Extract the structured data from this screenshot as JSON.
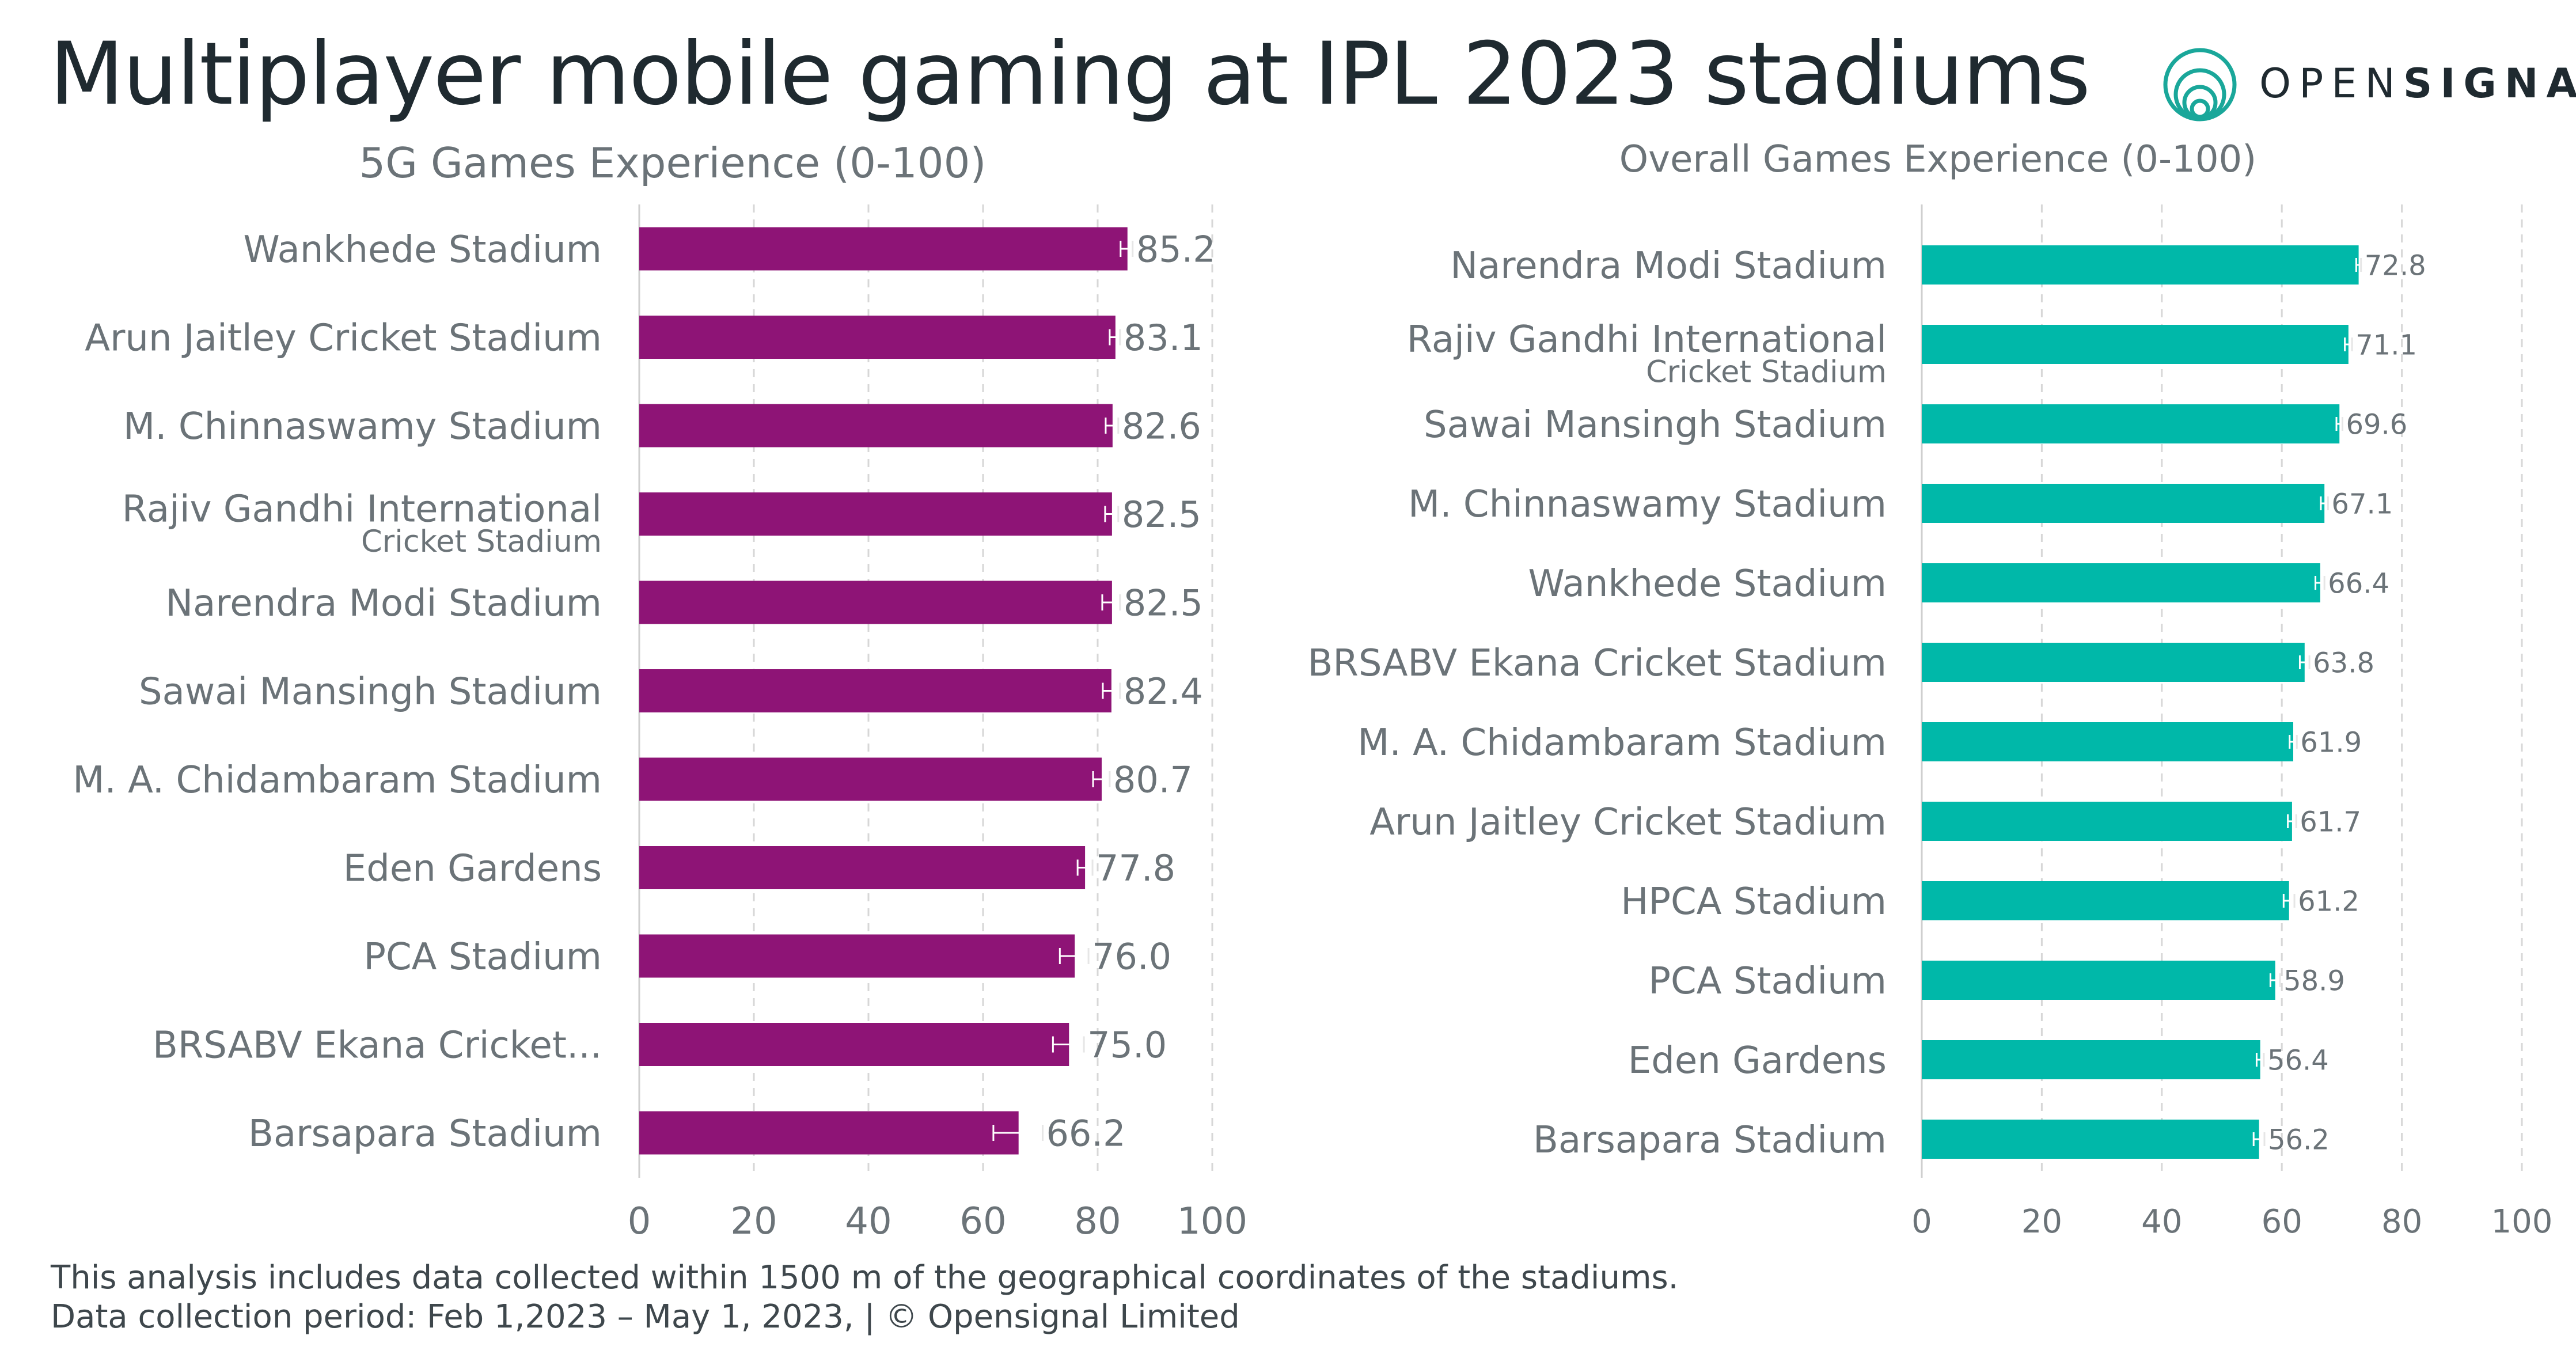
{
  "title": "Multiplayer mobile gaming at IPL 2023 stadiums",
  "logo": {
    "text_light": "OPEN",
    "text_bold": "SIGNAL",
    "icon": "opensignal-rings-icon",
    "color": "#1aa79a"
  },
  "colors": {
    "left_bar": "#8e1476",
    "right_bar": "#00b8a9",
    "grid": "#d7d7d7",
    "label": "#6b7378"
  },
  "footer": {
    "line1": "This analysis includes data collected within 1500 m of the geographical coordinates of the stadiums.",
    "line2": "Data collection period: Feb 1,2023 – May 1, 2023, | © Opensignal Limited"
  },
  "chart_data": [
    {
      "type": "bar",
      "orientation": "horizontal",
      "title": "5G Games Experience (0-100)",
      "categories": [
        [
          "Wankhede Stadium"
        ],
        [
          "Arun Jaitley Cricket Stadium"
        ],
        [
          "M. Chinnaswamy Stadium"
        ],
        [
          "Rajiv Gandhi International",
          "Cricket Stadium"
        ],
        [
          "Narendra Modi Stadium"
        ],
        [
          "Sawai Mansingh Stadium"
        ],
        [
          "M. A. Chidambaram Stadium"
        ],
        [
          "Eden Gardens"
        ],
        [
          "PCA Stadium"
        ],
        [
          "BRSABV Ekana Cricket..."
        ],
        [
          "Barsapara Stadium"
        ]
      ],
      "values": [
        85.2,
        83.1,
        82.6,
        82.5,
        82.5,
        82.4,
        80.7,
        77.8,
        76.0,
        75.0,
        66.2
      ],
      "value_labels": [
        "85.2",
        "83.1",
        "82.6",
        "82.5",
        "82.5",
        "82.4",
        "80.7",
        "77.8",
        "76.0",
        "75.0",
        "66.2"
      ],
      "error_low": [
        84.0,
        82.1,
        81.4,
        81.3,
        80.8,
        80.9,
        79.2,
        76.5,
        73.4,
        72.2,
        61.8
      ],
      "error_high": [
        86.1,
        83.9,
        83.6,
        83.6,
        83.9,
        83.9,
        82.1,
        79.1,
        78.4,
        77.6,
        70.4
      ],
      "xlim": [
        0,
        100
      ],
      "xticks": [
        0,
        20,
        40,
        60,
        80,
        100
      ],
      "grid": true,
      "color": "#8e1476"
    },
    {
      "type": "bar",
      "orientation": "horizontal",
      "title": "Overall Games Experience (0-100)",
      "categories": [
        [
          "Narendra Modi Stadium"
        ],
        [
          "Rajiv Gandhi International",
          "Cricket Stadium"
        ],
        [
          "Sawai Mansingh Stadium"
        ],
        [
          "M. Chinnaswamy Stadium"
        ],
        [
          "Wankhede Stadium"
        ],
        [
          "BRSABV Ekana Cricket Stadium"
        ],
        [
          "M. A. Chidambaram Stadium"
        ],
        [
          "Arun Jaitley Cricket Stadium"
        ],
        [
          "HPCA Stadium"
        ],
        [
          "PCA Stadium"
        ],
        [
          "Eden Gardens"
        ],
        [
          "Barsapara Stadium"
        ]
      ],
      "values": [
        72.8,
        71.1,
        69.6,
        67.1,
        66.4,
        63.8,
        61.9,
        61.7,
        61.2,
        58.9,
        56.4,
        56.2
      ],
      "value_labels": [
        "72.8",
        "71.1",
        "69.6",
        "67.1",
        "66.4",
        "63.8",
        "61.9",
        "61.7",
        "61.2",
        "58.9",
        "56.4",
        "56.2"
      ],
      "error_low": [
        72.4,
        70.5,
        69.1,
        66.5,
        65.6,
        63.0,
        61.3,
        61.0,
        60.3,
        58.1,
        55.8,
        55.3
      ],
      "error_high": [
        73.2,
        71.7,
        70.1,
        67.7,
        67.1,
        64.6,
        62.5,
        62.4,
        62.1,
        59.7,
        57.0,
        57.1
      ],
      "xlim": [
        0,
        100
      ],
      "xticks": [
        0,
        20,
        40,
        60,
        80,
        100
      ],
      "grid": true,
      "color": "#00b8a9"
    }
  ]
}
